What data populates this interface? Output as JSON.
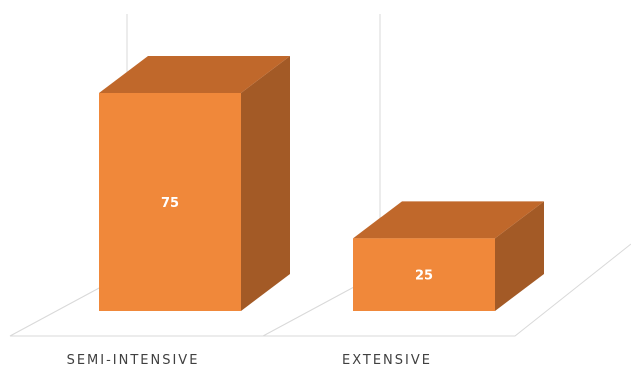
{
  "chart_data": {
    "type": "bar",
    "style": "3d-column",
    "categories": [
      "SEMI-INTENSIVE",
      "EXTENSIVE"
    ],
    "values": [
      75,
      25
    ],
    "data_labels": [
      "75",
      "25"
    ],
    "title": "",
    "xlabel": "",
    "ylabel": "",
    "ylim": [
      0,
      100
    ],
    "grid": false,
    "legend": "none",
    "colors": {
      "front": "#F0883A",
      "top": "#C0682B",
      "side": "#A35A26",
      "wall_lines": "#D9D9D9",
      "label_text": "#404040",
      "value_text": "#FFFFFF"
    }
  }
}
